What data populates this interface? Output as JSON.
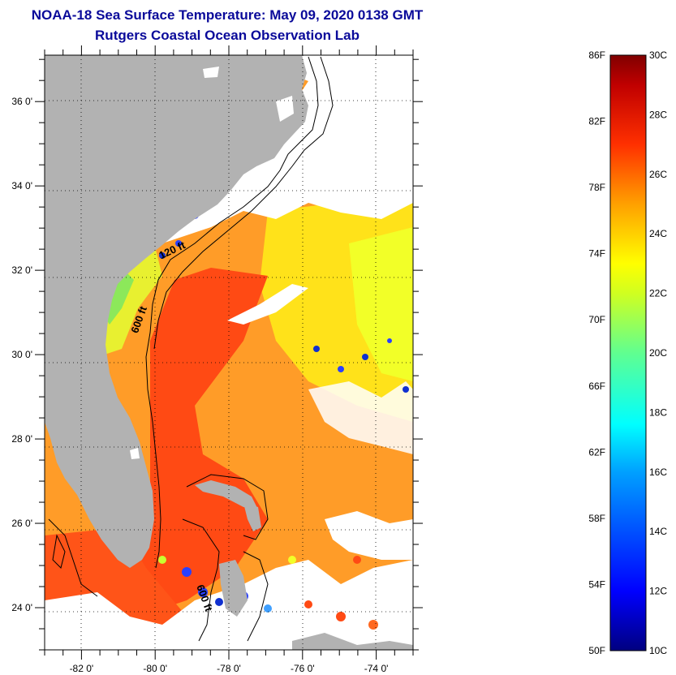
{
  "header": {
    "title": "NOAA-18 Sea Surface Temperature:  May 09, 2020 0138 GMT",
    "subtitle": "Rutgers Coastal Ocean Observation Lab"
  },
  "map": {
    "lon_range": [
      -83.0,
      -73.0
    ],
    "lat_range": [
      23.0,
      37.1
    ],
    "lat_ticks": [
      {
        "value": 36,
        "label": "36 0'"
      },
      {
        "value": 34,
        "label": "34 0'"
      },
      {
        "value": 32,
        "label": "32 0'"
      },
      {
        "value": 30,
        "label": "30 0'"
      },
      {
        "value": 28,
        "label": "28 0'"
      },
      {
        "value": 26,
        "label": "26 0'"
      },
      {
        "value": 24,
        "label": "24 0'"
      }
    ],
    "lon_ticks": [
      {
        "value": -82,
        "label": "-82 0'"
      },
      {
        "value": -80,
        "label": "-80 0'"
      },
      {
        "value": -78,
        "label": "-78 0'"
      },
      {
        "value": -76,
        "label": "-76 0'"
      },
      {
        "value": -74,
        "label": "-74 0'"
      }
    ],
    "contour_labels": [
      {
        "text": "120 ft",
        "lon": -79.5,
        "lat": 32.4
      },
      {
        "text": "600 ft",
        "lon": -80.35,
        "lat": 30.8
      },
      {
        "text": "600 ft",
        "lon": -78.75,
        "lat": 24.2
      }
    ],
    "colors": {
      "land": "#b2b2b2",
      "cloud": "#ffffff",
      "frame": "#000000",
      "grid": "#000000"
    }
  },
  "colorbar": {
    "fahrenheit_labels": [
      "86F",
      "82F",
      "78F",
      "74F",
      "70F",
      "66F",
      "62F",
      "58F",
      "54F",
      "50F"
    ],
    "celsius_labels": [
      "30C",
      "28C",
      "26C",
      "24C",
      "22C",
      "20C",
      "18C",
      "16C",
      "14C",
      "12C",
      "10C"
    ],
    "range_celsius": [
      10,
      30
    ]
  }
}
